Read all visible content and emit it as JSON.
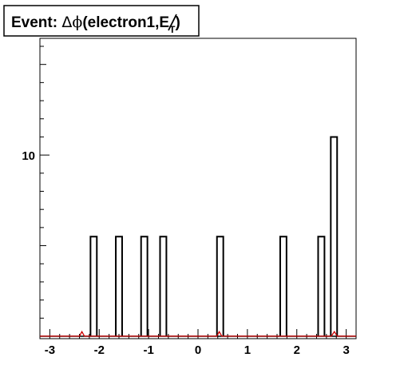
{
  "chart_data": {
    "type": "bar",
    "title": {
      "prefix": "Event: ",
      "delta": "Δ",
      "phi": "ϕ",
      "open": "(electron1,",
      "met": "E",
      "met_sub": "T",
      "close": ")"
    },
    "xlabel": "",
    "ylabel": "",
    "xlim": [
      -3.2,
      3.2
    ],
    "ylim": [
      0,
      16
    ],
    "x_ticks": [
      -3,
      -2,
      -1,
      0,
      1,
      2,
      3
    ],
    "x_tick_labels": [
      "-3",
      "-2",
      "-1",
      "0",
      "1",
      "2",
      "3"
    ],
    "y_ticks": [
      10
    ],
    "y_tick_labels": [
      "10"
    ],
    "bin_width": 0.128,
    "series": [
      {
        "color": "#000000",
        "bins": [
          {
            "x_low": -2.176,
            "x_high": -2.048,
            "value": 5.5
          },
          {
            "x_low": -1.664,
            "x_high": -1.536,
            "value": 5.5
          },
          {
            "x_low": -1.152,
            "x_high": -1.024,
            "value": 5.5
          },
          {
            "x_low": -0.768,
            "x_high": -0.64,
            "value": 5.5
          },
          {
            "x_low": 0.384,
            "x_high": 0.512,
            "value": 5.5
          },
          {
            "x_low": 1.664,
            "x_high": 1.792,
            "value": 5.5
          },
          {
            "x_low": 2.432,
            "x_high": 2.56,
            "value": 5.5
          },
          {
            "x_low": 2.688,
            "x_high": 2.816,
            "value": 11
          }
        ]
      },
      {
        "color": "#cc0000",
        "points": [
          {
            "x": -3.2,
            "y": 0.05
          },
          {
            "x": -2.4,
            "y": 0.05
          },
          {
            "x": -2.35,
            "y": 0.3
          },
          {
            "x": -2.3,
            "y": 0.05
          },
          {
            "x": 0.38,
            "y": 0.05
          },
          {
            "x": 0.43,
            "y": 0.3
          },
          {
            "x": 0.48,
            "y": 0.05
          },
          {
            "x": 2.7,
            "y": 0.05
          },
          {
            "x": 2.76,
            "y": 0.3
          },
          {
            "x": 2.82,
            "y": 0.05
          },
          {
            "x": 3.2,
            "y": 0.05
          }
        ]
      }
    ]
  }
}
